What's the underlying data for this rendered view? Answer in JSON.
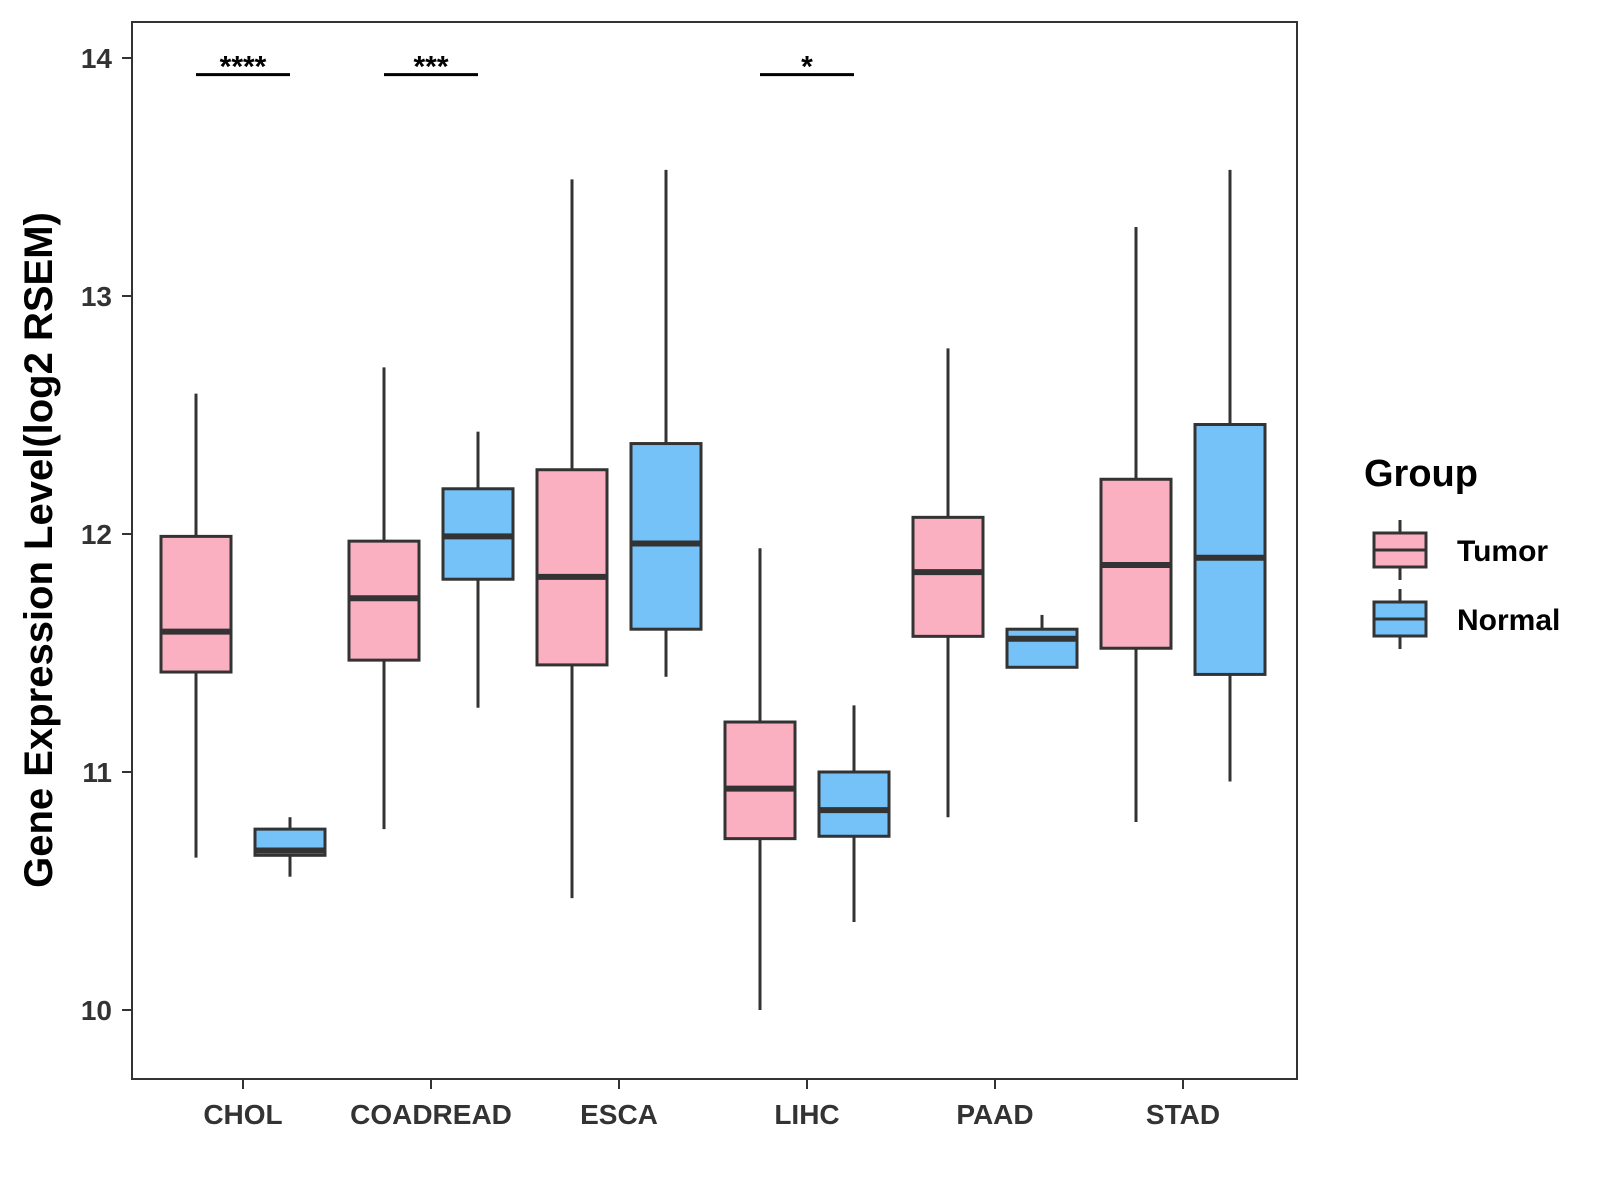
{
  "chart_data": {
    "type": "boxplot",
    "title": "",
    "xlabel": "",
    "ylabel": "Gene Expression Level(log2 RSEM)",
    "ylim": [
      9.72,
      14.15
    ],
    "yticks": [
      10,
      11,
      12,
      13,
      14
    ],
    "grid": false,
    "categories": [
      "CHOL",
      "COADREAD",
      "ESCA",
      "LIHC",
      "PAAD",
      "STAD"
    ],
    "legend": {
      "title": "Group",
      "placement": "right",
      "entries": [
        {
          "name": "Tumor",
          "color": "#FBB0C2"
        },
        {
          "name": "Normal",
          "color": "#75C2F8"
        }
      ]
    },
    "series": [
      {
        "name": "Tumor",
        "color": "#FBB0C2",
        "boxes": [
          {
            "category": "CHOL",
            "min": 10.64,
            "q1": 11.42,
            "median": 11.59,
            "q3": 11.99,
            "max": 12.59
          },
          {
            "category": "COADREAD",
            "min": 10.76,
            "q1": 11.47,
            "median": 11.73,
            "q3": 11.97,
            "max": 12.7
          },
          {
            "category": "ESCA",
            "min": 10.47,
            "q1": 11.45,
            "median": 11.82,
            "q3": 12.27,
            "max": 13.49
          },
          {
            "category": "LIHC",
            "min": 10.0,
            "q1": 10.72,
            "median": 10.93,
            "q3": 11.21,
            "max": 11.94
          },
          {
            "category": "PAAD",
            "min": 10.81,
            "q1": 11.57,
            "median": 11.84,
            "q3": 12.07,
            "max": 12.78
          },
          {
            "category": "STAD",
            "min": 10.79,
            "q1": 11.52,
            "median": 11.87,
            "q3": 12.23,
            "max": 13.29
          }
        ]
      },
      {
        "name": "Normal",
        "color": "#75C2F8",
        "boxes": [
          {
            "category": "CHOL",
            "min": 10.56,
            "q1": 10.65,
            "median": 10.67,
            "q3": 10.76,
            "max": 10.81
          },
          {
            "category": "COADREAD",
            "min": 11.27,
            "q1": 11.81,
            "median": 11.99,
            "q3": 12.19,
            "max": 12.43
          },
          {
            "category": "ESCA",
            "min": 11.4,
            "q1": 11.6,
            "median": 11.96,
            "q3": 12.38,
            "max": 13.53
          },
          {
            "category": "LIHC",
            "min": 10.37,
            "q1": 10.73,
            "median": 10.84,
            "q3": 11.0,
            "max": 11.28
          },
          {
            "category": "PAAD",
            "min": 11.44,
            "q1": 11.44,
            "median": 11.56,
            "q3": 11.6,
            "max": 11.66
          },
          {
            "category": "STAD",
            "min": 10.96,
            "q1": 11.41,
            "median": 11.9,
            "q3": 12.46,
            "max": 13.53
          }
        ]
      }
    ],
    "annotations": [
      {
        "category": "CHOL",
        "label": "****",
        "y": 13.93
      },
      {
        "category": "COADREAD",
        "label": "***",
        "y": 13.93
      },
      {
        "category": "LIHC",
        "label": "*",
        "y": 13.93
      }
    ]
  }
}
